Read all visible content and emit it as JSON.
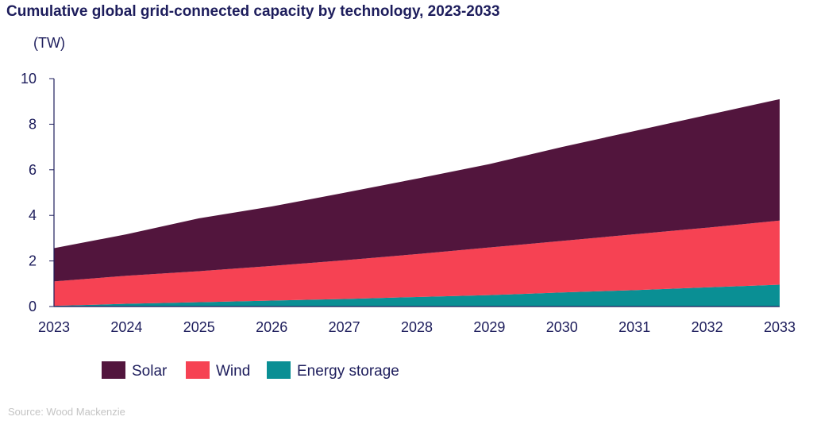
{
  "chart_data": {
    "type": "area",
    "stacked": true,
    "title": "Cumulative global grid-connected capacity by technology, 2023-2033",
    "ylabel": "(TW)",
    "xlabel": "",
    "x": [
      2023,
      2024,
      2025,
      2026,
      2027,
      2028,
      2029,
      2030,
      2031,
      2032,
      2033
    ],
    "ylim": [
      0,
      10
    ],
    "yticks": [
      0,
      2,
      4,
      6,
      8,
      10
    ],
    "grid": false,
    "legend": "bottom",
    "series": [
      {
        "name": "Energy storage",
        "color": "#0a8f94",
        "values": [
          0.03,
          0.12,
          0.19,
          0.26,
          0.33,
          0.42,
          0.5,
          0.62,
          0.72,
          0.84,
          0.96
        ]
      },
      {
        "name": "Wind",
        "color": "#f64253",
        "values": [
          1.07,
          1.23,
          1.36,
          1.52,
          1.7,
          1.88,
          2.09,
          2.26,
          2.45,
          2.62,
          2.81
        ]
      },
      {
        "name": "Solar",
        "color": "#52153d",
        "values": [
          1.46,
          1.82,
          2.32,
          2.61,
          2.96,
          3.31,
          3.66,
          4.12,
          4.53,
          4.94,
          5.33
        ]
      }
    ],
    "legend_order": [
      "Solar",
      "Wind",
      "Energy storage"
    ],
    "source": "Source: Wood Mackenzie"
  }
}
